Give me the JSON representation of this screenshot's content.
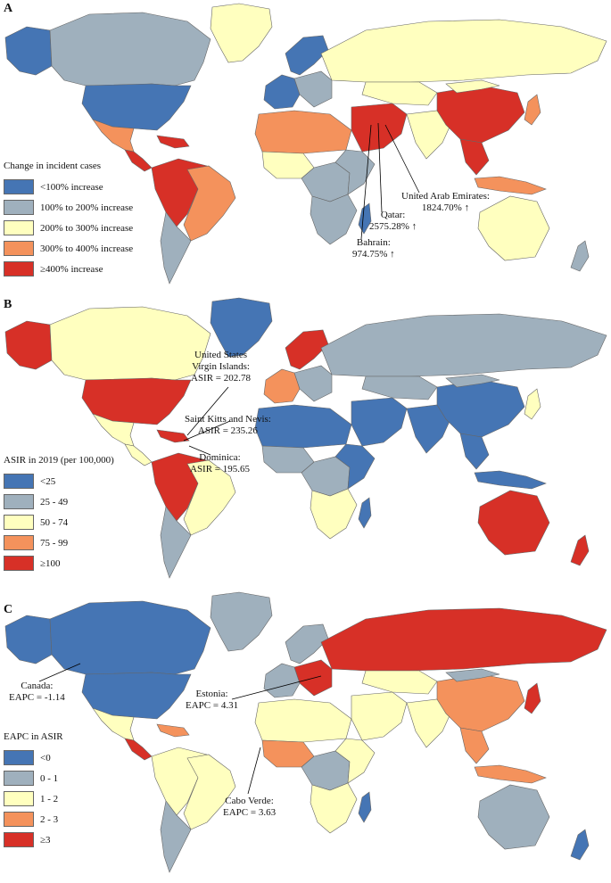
{
  "colors": {
    "c1": "#4575b4",
    "c2": "#9fb0bd",
    "c3": "#ffffbf",
    "c4": "#f4925c",
    "c5": "#d73027",
    "ocean": "#ffffff",
    "border": "#666666"
  },
  "panels": [
    {
      "letter": "A",
      "legend_title": "Change in incident cases",
      "legend": [
        "<100% increase",
        "100% to 200% increase",
        "200% to 300% increase",
        "300% to 400% increase",
        "≥400% increase"
      ],
      "region_colors": {
        "greenland": "c3",
        "alaska": "c1",
        "canada": "c2",
        "usa": "c1",
        "mexico": "c4",
        "central_america": "c5",
        "caribbean": "c5",
        "south_america_north": "c5",
        "brazil": "c4",
        "south_america_south": "c2",
        "western_europe": "c1",
        "eastern_europe": "c2",
        "scandinavia": "c1",
        "russia": "c3",
        "north_africa": "c4",
        "west_africa": "c3",
        "central_africa": "c2",
        "east_africa": "c2",
        "southern_africa": "c2",
        "madagascar": "c1",
        "middle_east": "c5",
        "central_asia": "c3",
        "south_asia": "c3",
        "china": "c5",
        "mongolia": "c3",
        "japan": "c4",
        "southeast_asia": "c5",
        "indonesia": "c4",
        "australia": "c3",
        "new_zealand": "c2"
      },
      "callouts": [
        {
          "id": "uae",
          "lines": [
            "United Arab Emirates:",
            "1824.70% ↑"
          ]
        },
        {
          "id": "qatar",
          "lines": [
            "Qatar:",
            "2575.28% ↑"
          ]
        },
        {
          "id": "bahrain",
          "lines": [
            "Bahrain:",
            "974.75% ↑"
          ]
        }
      ]
    },
    {
      "letter": "B",
      "legend_title": "ASIR in 2019 (per 100,000)",
      "legend": [
        "<25",
        "25 - 49",
        "50 - 74",
        "75 - 99",
        "≥100"
      ],
      "region_colors": {
        "greenland": "c1",
        "alaska": "c5",
        "canada": "c3",
        "usa": "c5",
        "mexico": "c3",
        "central_america": "c3",
        "caribbean": "c5",
        "south_america_north": "c5",
        "brazil": "c3",
        "south_america_south": "c2",
        "western_europe": "c4",
        "eastern_europe": "c2",
        "scandinavia": "c5",
        "russia": "c2",
        "north_africa": "c1",
        "west_africa": "c2",
        "central_africa": "c2",
        "east_africa": "c1",
        "southern_africa": "c3",
        "madagascar": "c1",
        "middle_east": "c1",
        "central_asia": "c2",
        "south_asia": "c1",
        "china": "c1",
        "mongolia": "c2",
        "japan": "c3",
        "southeast_asia": "c1",
        "indonesia": "c1",
        "australia": "c5",
        "new_zealand": "c5"
      },
      "callouts": [
        {
          "id": "usvi",
          "lines": [
            "United States",
            "Virgin Islands:",
            "ASIR = 202.78"
          ]
        },
        {
          "id": "skn",
          "lines": [
            "Saint Kitts and Nevis:",
            "ASIR = 235.26"
          ]
        },
        {
          "id": "dominica",
          "lines": [
            "Dominica:",
            "ASIR = 195.65"
          ]
        }
      ]
    },
    {
      "letter": "C",
      "legend_title": "EAPC in ASIR",
      "legend": [
        "<0",
        "0 - 1",
        "1 - 2",
        "2 - 3",
        "≥3"
      ],
      "region_colors": {
        "greenland": "c2",
        "alaska": "c1",
        "canada": "c1",
        "usa": "c1",
        "mexico": "c3",
        "central_america": "c5",
        "caribbean": "c4",
        "south_america_north": "c3",
        "brazil": "c3",
        "south_america_south": "c2",
        "western_europe": "c2",
        "eastern_europe": "c5",
        "scandinavia": "c2",
        "russia": "c5",
        "north_africa": "c3",
        "west_africa": "c4",
        "central_africa": "c2",
        "east_africa": "c3",
        "southern_africa": "c3",
        "madagascar": "c1",
        "middle_east": "c3",
        "central_asia": "c3",
        "south_asia": "c3",
        "china": "c4",
        "mongolia": "c2",
        "japan": "c5",
        "southeast_asia": "c4",
        "indonesia": "c4",
        "australia": "c2",
        "new_zealand": "c1"
      },
      "callouts": [
        {
          "id": "canada",
          "lines": [
            "Canada:",
            "EAPC = -1.14"
          ]
        },
        {
          "id": "estonia",
          "lines": [
            "Estonia:",
            "EAPC = 4.31"
          ]
        },
        {
          "id": "caboverde",
          "lines": [
            "Cabo Verde:",
            "EAPC =  3.63"
          ]
        }
      ]
    }
  ]
}
